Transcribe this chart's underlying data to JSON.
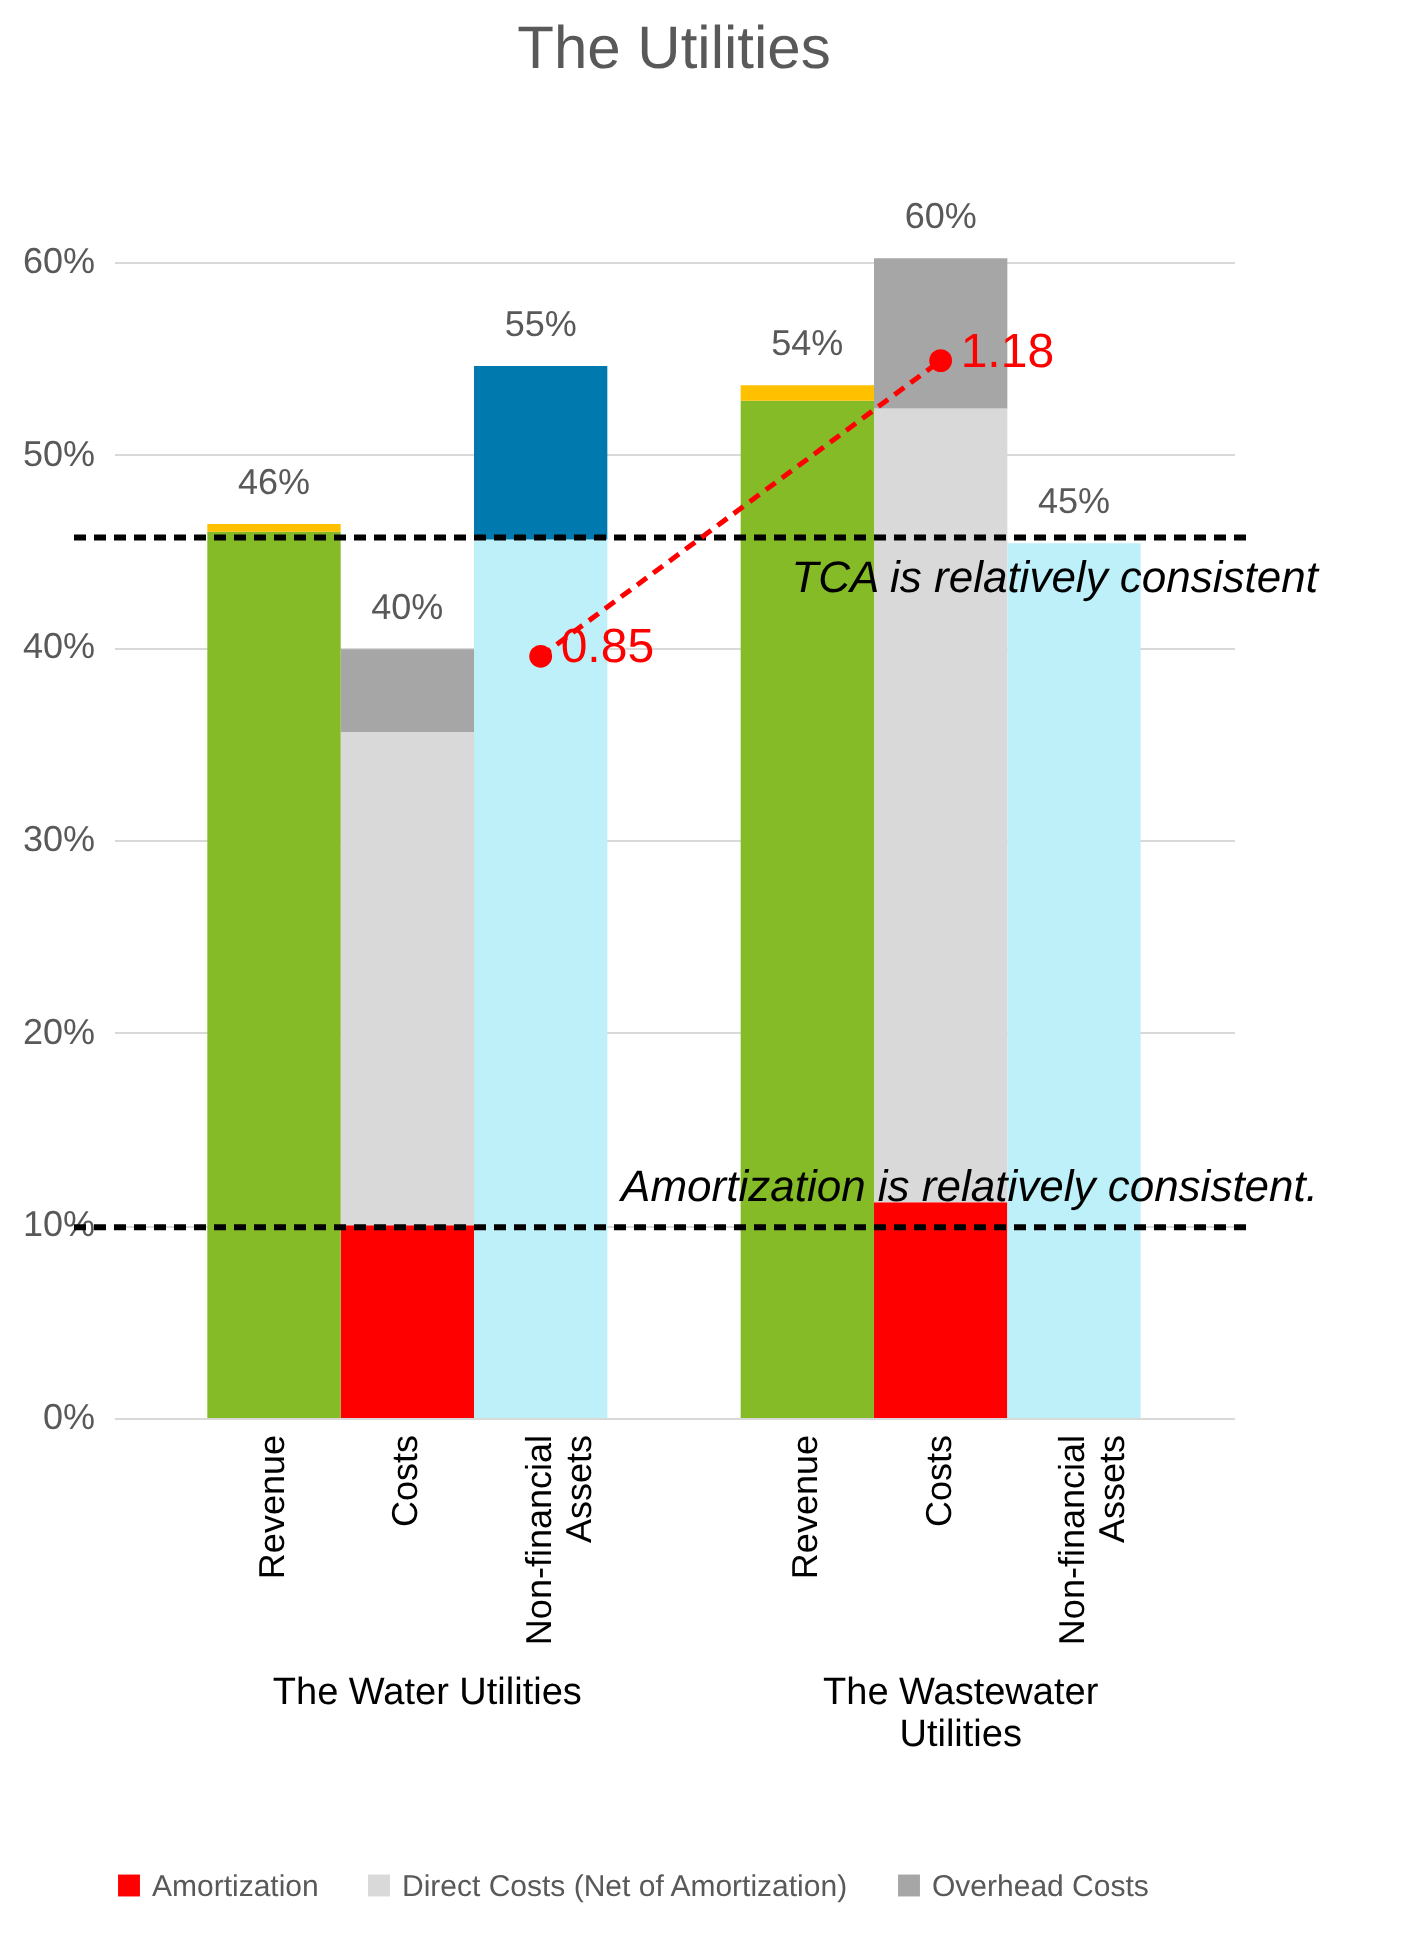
{
  "chart_data": {
    "type": "bar",
    "title": "The Utilities",
    "stacked": true,
    "categories": [
      "Revenue",
      "Costs",
      "Non-financial Assets",
      null,
      "Revenue",
      "Costs",
      "Non-financial Assets"
    ],
    "series": [
      {
        "name": "Amortization",
        "color": "#ff0000",
        "values": [
          null,
          10,
          null,
          null,
          null,
          11.2,
          null
        ]
      },
      {
        "name": "Direct Costs (Net of Amortization)",
        "color": "#d9d9d9",
        "values": [
          null,
          25.6,
          null,
          null,
          null,
          41.2,
          null
        ]
      },
      {
        "name": "Overhead Costs",
        "color": "#a6a6a6",
        "values": [
          null,
          4.3,
          null,
          null,
          null,
          7.8,
          null
        ]
      },
      {
        "color": "#84bb26",
        "values": [
          46.0,
          null,
          null,
          null,
          52.8,
          null,
          null
        ]
      },
      {
        "color": "#ffc000",
        "values": [
          0.4,
          null,
          null,
          null,
          0.8,
          null,
          null
        ]
      },
      {
        "color": "#bdf0f8",
        "values": [
          null,
          null,
          45.6,
          null,
          null,
          null,
          45.4
        ]
      },
      {
        "color": "#0079ae",
        "values": [
          null,
          null,
          9.0,
          null,
          null,
          null,
          null
        ]
      },
      {
        "type": "line",
        "axis": "y2",
        "color": "#ff0000",
        "line_style": "dashed",
        "marker": "circle",
        "values": [
          null,
          null,
          0.85,
          null,
          null,
          1.18,
          null
        ],
        "value_labels": [
          null,
          null,
          "0.85",
          null,
          null,
          "1.18",
          null
        ]
      }
    ],
    "totals": [
      "46%",
      "40%",
      "55%",
      null,
      "54%",
      "60%",
      "45%"
    ],
    "ylim": [
      0,
      60
    ],
    "yticks": [
      {
        "value": 0,
        "label": "0%"
      },
      {
        "value": 10,
        "label": "10%"
      },
      {
        "value": 20,
        "label": "20%"
      },
      {
        "value": 30,
        "label": "30%"
      },
      {
        "value": 40,
        "label": "40%"
      },
      {
        "value": 50,
        "label": "50%"
      },
      {
        "value": 60,
        "label": "60%"
      }
    ],
    "y2lim": [
      0,
      1.29
    ],
    "grid": "y",
    "legend": "bottom",
    "ref_lines": [
      {
        "axis": "y",
        "value": 45.7,
        "label": "TCA is relatively consistent",
        "color": "#000000",
        "line_style": "dashed"
      },
      {
        "axis": "y",
        "value": 9.9,
        "label": "Amortization is relatively consistent.",
        "color": "#000000",
        "line_style": "dashed"
      }
    ],
    "annotations": [
      "The Water Utilities",
      "The Wastewater Utilities"
    ]
  }
}
